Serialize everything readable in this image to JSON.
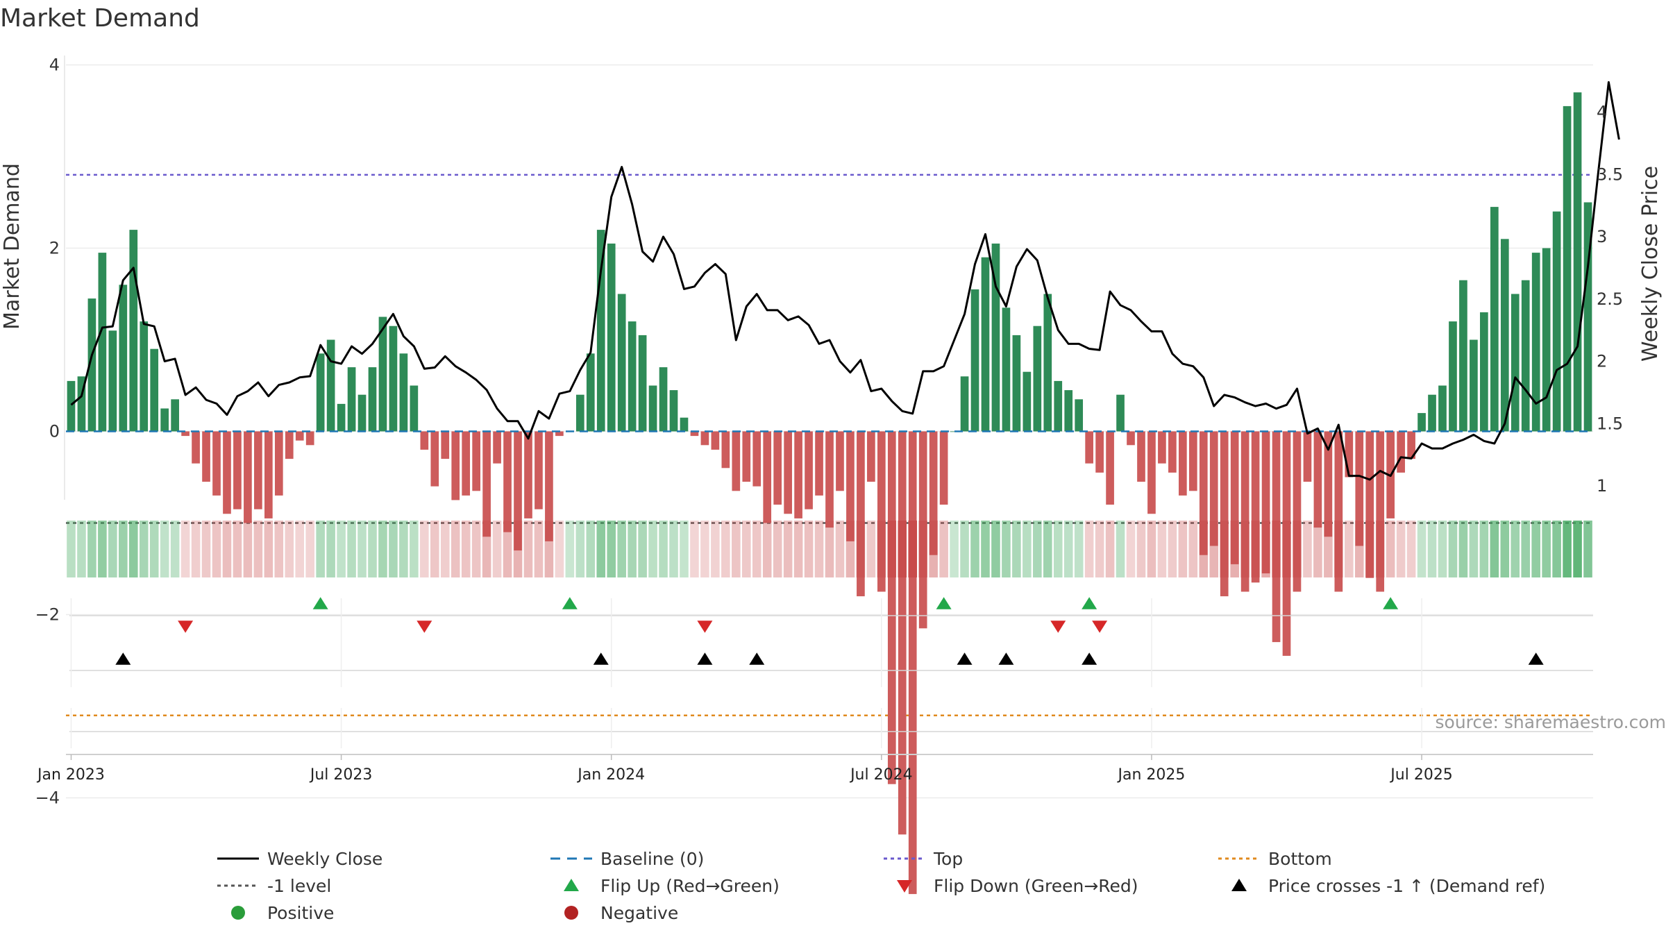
{
  "chart_data": {
    "type": "bar",
    "title": "Market Demand",
    "ylabel": "Market Demand",
    "y2label": "Weekly Close Price",
    "ylim": [
      -5.4,
      4.2
    ],
    "y2lim": [
      0.98,
      4.38
    ],
    "yticks": [
      "4",
      "2",
      "0",
      "−2",
      "−4"
    ],
    "yticks_values": [
      4,
      2,
      0,
      -2,
      -4
    ],
    "y2ticks": [
      "4",
      "3.5",
      "3",
      "2.5",
      "2",
      "1.5",
      "1"
    ],
    "y2ticks_values": [
      4,
      3.5,
      3,
      2.5,
      2,
      1.5,
      1
    ],
    "levels": {
      "top": 2.8,
      "bottom": -3.1,
      "minus_one": -1,
      "baseline": 0
    },
    "x_start": "Dec 26, 2022",
    "x_step": "1 week",
    "date_ticks": [
      {
        "label": "Jan 2023",
        "week": 1
      },
      {
        "label": "Jul 2023",
        "week": 27
      },
      {
        "label": "Jan 2024",
        "week": 53
      },
      {
        "label": "Jul 2024",
        "week": 79
      },
      {
        "label": "Jan 2025",
        "week": 105
      },
      {
        "label": "Jul 2025",
        "week": 131
      }
    ],
    "demand": [
      0.55,
      0.6,
      1.45,
      1.95,
      1.1,
      1.6,
      2.2,
      1.2,
      0.9,
      0.25,
      0.35,
      -0.05,
      -0.35,
      -0.55,
      -0.7,
      -0.9,
      -0.85,
      -1.0,
      -0.85,
      -0.95,
      -0.7,
      -0.3,
      -0.1,
      -0.15,
      0.85,
      1.0,
      0.3,
      0.7,
      0.4,
      0.7,
      1.25,
      1.15,
      0.85,
      0.5,
      -0.2,
      -0.6,
      -0.3,
      -0.75,
      -0.7,
      -0.65,
      -1.15,
      -0.35,
      -1.1,
      -1.3,
      -0.95,
      -0.85,
      -1.2,
      -0.05,
      0.0,
      0.4,
      0.85,
      2.2,
      2.05,
      1.5,
      1.2,
      1.05,
      0.5,
      0.7,
      0.45,
      0.15,
      -0.05,
      -0.15,
      -0.2,
      -0.4,
      -0.65,
      -0.55,
      -0.6,
      -1.0,
      -0.8,
      -0.9,
      -0.95,
      -0.85,
      -0.7,
      -1.05,
      -0.65,
      -1.2,
      -1.8,
      -0.55,
      -1.75,
      -3.85,
      -4.4,
      -5.05,
      -2.15,
      -1.35,
      -0.8,
      0.0,
      0.6,
      1.55,
      1.9,
      2.05,
      1.35,
      1.05,
      0.65,
      1.15,
      1.5,
      0.55,
      0.45,
      0.35,
      -0.35,
      -0.45,
      -0.8,
      0.4,
      -0.15,
      -0.55,
      -0.9,
      -0.35,
      -0.45,
      -0.7,
      -0.65,
      -1.35,
      -1.25,
      -1.8,
      -1.45,
      -1.75,
      -1.65,
      -1.55,
      -2.3,
      -2.45,
      -1.75,
      -0.55,
      -1.05,
      -1.15,
      -1.75,
      -0.5,
      -1.25,
      -1.6,
      -1.75,
      -0.95,
      -0.45,
      -0.3,
      0.2,
      0.4,
      0.5,
      1.2,
      1.65,
      1.0,
      1.3,
      2.45,
      2.1,
      1.5,
      1.65,
      1.95,
      2.0,
      2.4,
      3.55,
      3.7,
      2.5
    ],
    "close": [
      1.65,
      1.72,
      2.05,
      2.27,
      2.28,
      2.65,
      2.75,
      2.3,
      2.28,
      2.0,
      2.02,
      1.73,
      1.79,
      1.69,
      1.66,
      1.57,
      1.72,
      1.76,
      1.83,
      1.72,
      1.81,
      1.83,
      1.87,
      1.88,
      2.13,
      2.0,
      1.98,
      2.12,
      2.06,
      2.14,
      2.26,
      2.38,
      2.2,
      2.12,
      1.94,
      1.95,
      2.04,
      1.96,
      1.91,
      1.85,
      1.77,
      1.62,
      1.52,
      1.52,
      1.38,
      1.6,
      1.54,
      1.74,
      1.76,
      1.93,
      2.07,
      2.73,
      3.32,
      3.56,
      3.26,
      2.88,
      2.8,
      3.0,
      2.86,
      2.58,
      2.6,
      2.71,
      2.78,
      2.7,
      2.17,
      2.44,
      2.54,
      2.41,
      2.41,
      2.33,
      2.36,
      2.29,
      2.14,
      2.17,
      2.0,
      1.91,
      2.01,
      1.76,
      1.78,
      1.68,
      1.6,
      1.58,
      1.92,
      1.92,
      1.96,
      2.17,
      2.38,
      2.78,
      3.02,
      2.6,
      2.44,
      2.76,
      2.9,
      2.81,
      2.51,
      2.25,
      2.14,
      2.14,
      2.1,
      2.09,
      2.56,
      2.45,
      2.41,
      2.32,
      2.24,
      2.24,
      2.06,
      1.98,
      1.96,
      1.87,
      1.64,
      1.73,
      1.71,
      1.67,
      1.64,
      1.66,
      1.62,
      1.65,
      1.78,
      1.42,
      1.46,
      1.29,
      1.49,
      1.08,
      1.08,
      1.05,
      1.12,
      1.08,
      1.23,
      1.22,
      1.34,
      1.3,
      1.3,
      1.34,
      1.37,
      1.41,
      1.36,
      1.34,
      1.5,
      1.87,
      1.77,
      1.66,
      1.71,
      1.93,
      1.98,
      2.12,
      2.76,
      3.52,
      4.24,
      3.78
    ],
    "flip_up_weeks": [
      24,
      48,
      84,
      98,
      127
    ],
    "flip_down_weeks": [
      11,
      34,
      61,
      95,
      99
    ],
    "price_cross_weeks": [
      5,
      51,
      61,
      66,
      86,
      90,
      98,
      141
    ],
    "legend": [
      {
        "label": "Weekly Close",
        "symbol": "line-solid",
        "color": "#000000"
      },
      {
        "label": "Baseline (0)",
        "symbol": "line-dash",
        "color": "#1f77b4"
      },
      {
        "label": "Top",
        "symbol": "line-dot",
        "color": "#6a5acd"
      },
      {
        "label": "Bottom",
        "symbol": "line-dot",
        "color": "#e08a1e"
      },
      {
        "label": "-1 level",
        "symbol": "line-dot",
        "color": "#555555"
      },
      {
        "label": "Flip Up (Red→Green)",
        "symbol": "triangle-up",
        "color": "#22a84a"
      },
      {
        "label": "Flip Down (Green→Red)",
        "symbol": "triangle-down",
        "color": "#d62728"
      },
      {
        "label": "Price crosses -1 ↑ (Demand ref)",
        "symbol": "triangle-up",
        "color": "#000000"
      },
      {
        "label": "Positive",
        "symbol": "circle",
        "color": "#2a9d3a"
      },
      {
        "label": "Negative",
        "symbol": "circle",
        "color": "#b22222"
      }
    ],
    "colors": {
      "positive_bar": "#2e8b57",
      "negative_bar": "#cd5c5c",
      "weekly_close": "#000000"
    }
  },
  "source": "source: sharemaestro.com"
}
